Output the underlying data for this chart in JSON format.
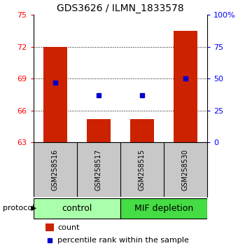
{
  "title": "GDS3626 / ILMN_1833578",
  "samples": [
    "GSM258516",
    "GSM258517",
    "GSM258515",
    "GSM258530"
  ],
  "red_bar_values": [
    72.0,
    65.2,
    65.2,
    73.5
  ],
  "blue_dot_values": [
    68.6,
    67.4,
    67.4,
    69.0
  ],
  "y_min": 63,
  "y_max": 75,
  "y_ticks": [
    63,
    66,
    69,
    72,
    75
  ],
  "right_y_ticks": [
    0,
    25,
    50,
    75,
    100
  ],
  "right_y_labels": [
    "0",
    "25",
    "50",
    "75",
    "100%"
  ],
  "groups": [
    {
      "label": "control",
      "color": "#aaffaa"
    },
    {
      "label": "MIF depletion",
      "color": "#44dd44"
    }
  ],
  "bar_color": "#cc2200",
  "dot_color": "#0000cc",
  "bar_width": 0.55,
  "grid_color": "#000000",
  "background_color": "#ffffff",
  "sample_box_color": "#c8c8c8",
  "protocol_label": "protocol",
  "legend_count": "count",
  "legend_percentile": "percentile rank within the sample",
  "title_fontsize": 10,
  "tick_fontsize": 8,
  "sample_fontsize": 7,
  "group_fontsize": 9,
  "legend_fontsize": 8
}
